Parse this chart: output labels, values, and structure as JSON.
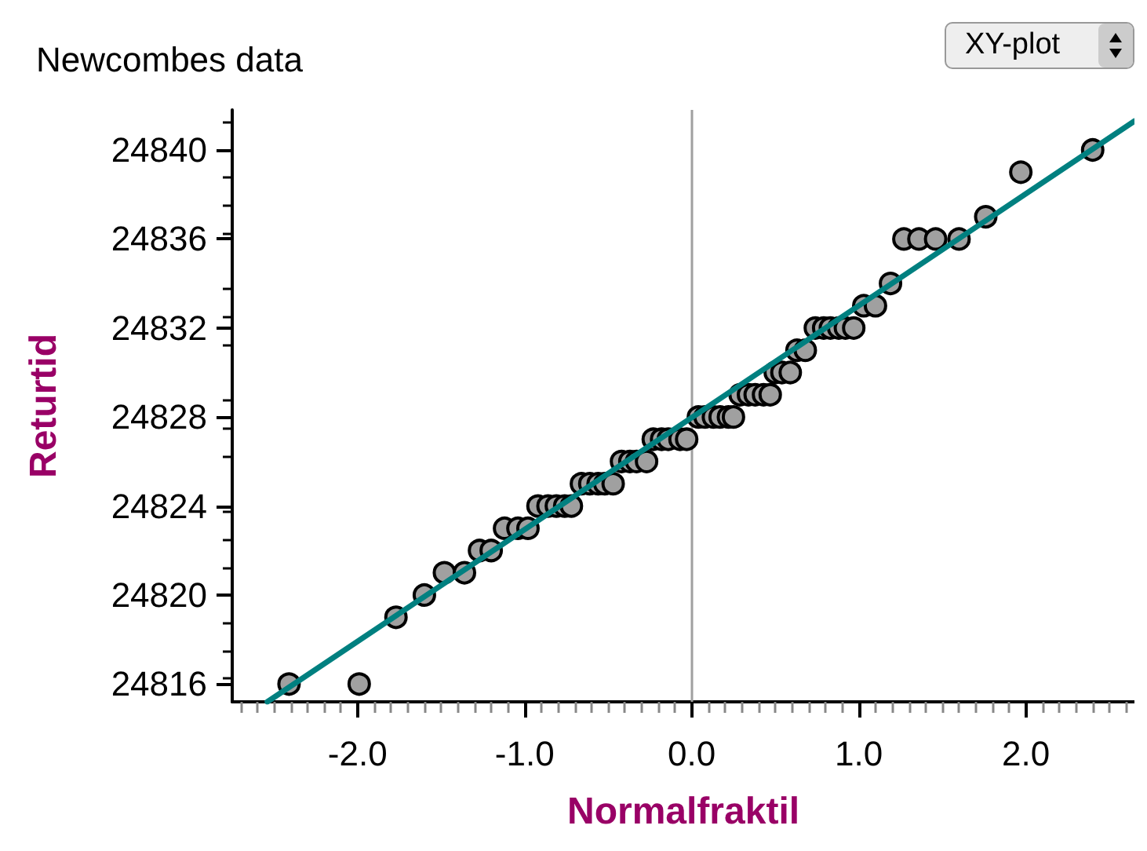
{
  "chart_data": {
    "type": "scatter",
    "title": "Newcombes data",
    "xlabel": "Normalfraktil",
    "ylabel": "Returtid",
    "annotations": [
      "XY-plot"
    ],
    "xlim": [
      -2.75,
      2.65
    ],
    "xticks": [
      {
        "value": -2,
        "label": "-2.0"
      },
      {
        "value": -1,
        "label": "-1.0"
      },
      {
        "value": 0,
        "label": "0.0"
      },
      {
        "value": 1,
        "label": "1.0"
      },
      {
        "value": 2,
        "label": "2.0"
      }
    ],
    "ylim": [
      24815.2,
      24841.8
    ],
    "yticks": [
      24816,
      24820,
      24824,
      24828,
      24832,
      24836,
      24840
    ],
    "grid": false,
    "marker": "circle",
    "ref_lines": [
      {
        "axis": "x",
        "value": 0,
        "color": "#a0a0a0"
      }
    ],
    "series": [
      {
        "color": "#a0a0a0",
        "x": [
          -2.41,
          -1.99,
          -1.77,
          -1.6,
          -1.48,
          -1.36,
          -1.27,
          -1.2,
          -1.12,
          -1.04,
          -0.98,
          -0.92,
          -0.86,
          -0.81,
          -0.76,
          -0.72,
          -0.66,
          -0.61,
          -0.56,
          -0.52,
          -0.47,
          -0.42,
          -0.37,
          -0.33,
          -0.27,
          -0.23,
          -0.18,
          -0.14,
          -0.07,
          -0.03,
          0.04,
          0.08,
          0.13,
          0.17,
          0.22,
          0.25,
          0.29,
          0.34,
          0.38,
          0.43,
          0.47,
          0.5,
          0.54,
          0.59,
          0.63,
          0.68,
          0.74,
          0.79,
          0.83,
          0.88,
          0.92,
          0.97,
          1.03,
          1.1,
          1.19,
          1.27,
          1.36,
          1.46,
          1.6,
          1.76,
          1.97,
          2.4
        ],
        "values": [
          24816,
          24816,
          24819,
          24820,
          24821,
          24821,
          24822,
          24822,
          24823,
          24823,
          24823,
          24824,
          24824,
          24824,
          24824,
          24824,
          24825,
          24825,
          24825,
          24825,
          24825,
          24826,
          24826,
          24826,
          24826,
          24827,
          24827,
          24827,
          24827,
          24827,
          24828,
          24828,
          24828,
          24828,
          24828,
          24828,
          24829,
          24829,
          24829,
          24829,
          24829,
          24830,
          24830,
          24830,
          24831,
          24831,
          24832,
          24832,
          24832,
          24832,
          24832,
          24832,
          24833,
          24833,
          24834,
          24836,
          24836,
          24836,
          24836,
          24837,
          24839,
          24840
        ]
      },
      {
        "type": "line",
        "color": "#008080",
        "marker": "none",
        "x": [
          -2.54,
          2.65
        ],
        "values": [
          24815.2,
          24841.3
        ]
      }
    ]
  }
}
